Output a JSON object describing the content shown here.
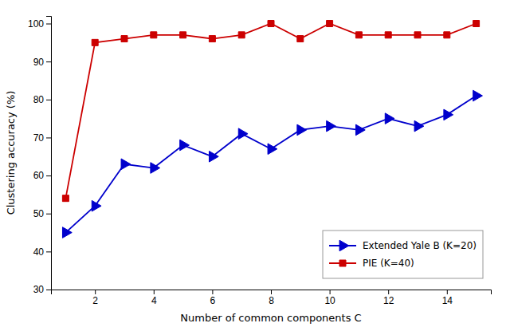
{
  "chart_data": {
    "type": "line",
    "xlabel": "Number of common components C",
    "ylabel": "Clustering accuracy (%)",
    "x": [
      1,
      2,
      3,
      4,
      5,
      6,
      7,
      8,
      9,
      10,
      11,
      12,
      13,
      14,
      15
    ],
    "series": [
      {
        "name": "Extended Yale B (K=20)",
        "color": "#0000CC",
        "marker": "triangle-right",
        "line_style": "solid",
        "values": [
          45,
          52,
          63,
          62,
          68,
          65,
          71,
          67,
          72,
          73,
          72,
          75,
          73,
          76,
          81
        ]
      },
      {
        "name": "PIE (K=40)",
        "color": "#CC0000",
        "marker": "square",
        "line_style": "solid",
        "values": [
          54,
          95,
          96,
          97,
          97,
          96,
          97,
          100,
          96,
          100,
          97,
          97,
          97,
          97,
          100
        ]
      }
    ],
    "xlim": [
      0.5,
      15.5
    ],
    "ylim": [
      30,
      102
    ],
    "xticks": [
      2,
      4,
      6,
      8,
      10,
      12,
      14
    ],
    "yticks": [
      30,
      40,
      50,
      60,
      70,
      80,
      90,
      100
    ],
    "grid": false,
    "legend": "lower right"
  }
}
